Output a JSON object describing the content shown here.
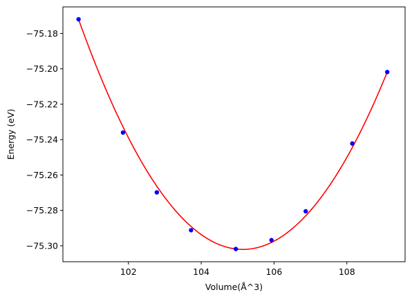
{
  "chart_data": {
    "type": "scatter",
    "title": "",
    "xlabel": "Volume(Å^3)",
    "ylabel": "Energy (eV)",
    "xlim": [
      100.2,
      109.6
    ],
    "ylim": [
      -75.309,
      -75.165
    ],
    "xticks": [
      102,
      104,
      106,
      108
    ],
    "xtick_labels": [
      "102",
      "104",
      "106",
      "108"
    ],
    "yticks": [
      -75.18,
      -75.2,
      -75.22,
      -75.24,
      -75.26,
      -75.28,
      -75.3
    ],
    "ytick_labels": [
      "−75.18",
      "−75.20",
      "−75.22",
      "−75.24",
      "−75.26",
      "−75.28",
      "−75.30"
    ],
    "grid": false,
    "series": [
      {
        "kind": "points",
        "color": "#0000ff",
        "x": [
          100.63,
          101.85,
          102.78,
          103.72,
          104.95,
          105.93,
          106.87,
          108.15,
          109.11
        ],
        "y": [
          -75.172,
          -75.236,
          -75.2698,
          -75.2912,
          -75.3018,
          -75.2968,
          -75.2805,
          -75.2422,
          -75.2018
        ]
      },
      {
        "kind": "fit_curve",
        "color": "#ff0000",
        "x_range": [
          100.63,
          109.11
        ],
        "fit_points_x": [
          100.63,
          104.95,
          109.11
        ],
        "fit_points_y": [
          -75.172,
          -75.3018,
          -75.2018
        ]
      }
    ]
  }
}
